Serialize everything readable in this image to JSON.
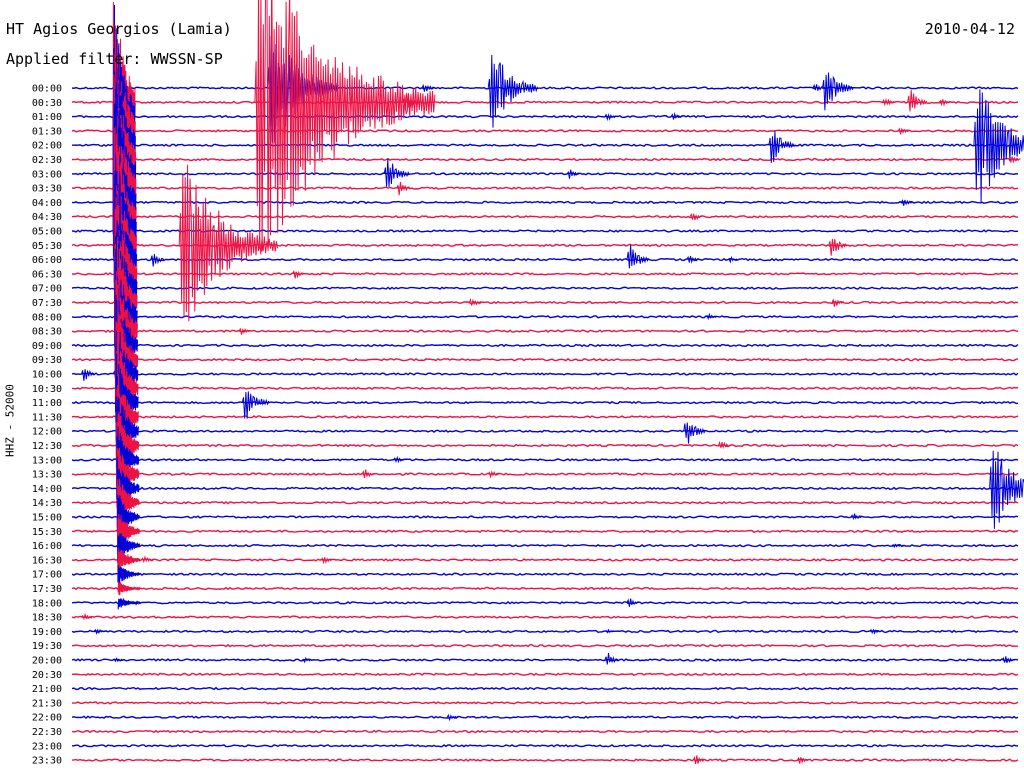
{
  "header": {
    "station_title": "HT Agios Georgios (Lamia)",
    "filter_label": "Applied filter: WWSSN-SP",
    "date": "2010-04-12"
  },
  "chart_data": {
    "type": "line",
    "title": "HT Agios Georgios (Lamia)",
    "ylabel": "HHZ - 52000",
    "colors": {
      "odd_trace": "#0000dd",
      "even_trace": "#ee1144"
    },
    "rows": [
      "00:00",
      "00:30",
      "01:00",
      "01:30",
      "02:00",
      "02:30",
      "03:00",
      "03:30",
      "04:00",
      "04:30",
      "05:00",
      "05:30",
      "06:00",
      "06:30",
      "07:00",
      "07:30",
      "08:00",
      "08:30",
      "09:00",
      "09:30",
      "10:00",
      "10:30",
      "11:00",
      "11:30",
      "12:00",
      "12:30",
      "13:00",
      "13:30",
      "14:00",
      "14:30",
      "15:00",
      "15:30",
      "16:00",
      "16:30",
      "17:00",
      "17:30",
      "18:00",
      "18:30",
      "19:00",
      "19:30",
      "20:00",
      "20:30",
      "21:00",
      "21:30",
      "22:00",
      "22:30",
      "23:00",
      "23:30"
    ],
    "events": [
      {
        "row": 0,
        "minute": 13.2,
        "amp": 55
      },
      {
        "row": 0,
        "minute": 6.2,
        "amp": 80
      },
      {
        "row": 0,
        "minute": 11.1,
        "amp": 12
      },
      {
        "row": 0,
        "minute": 23.5,
        "amp": 10
      },
      {
        "row": 0,
        "minute": 23.8,
        "amp": 35
      },
      {
        "row": 1,
        "minute": 5.8,
        "amp": 200
      },
      {
        "row": 1,
        "minute": 10.5,
        "amp": 18
      },
      {
        "row": 1,
        "minute": 26.5,
        "amp": 22
      },
      {
        "row": 1,
        "minute": 25.7,
        "amp": 10
      },
      {
        "row": 1,
        "minute": 27.5,
        "amp": 8
      },
      {
        "row": 2,
        "minute": 19.0,
        "amp": 8
      },
      {
        "row": 2,
        "minute": 16.9,
        "amp": 8
      },
      {
        "row": 3,
        "minute": 26.2,
        "amp": 8
      },
      {
        "row": 4,
        "minute": 22.1,
        "amp": 30
      },
      {
        "row": 4,
        "minute": 28.6,
        "amp": 80
      },
      {
        "row": 5,
        "minute": 29.7,
        "amp": 8
      },
      {
        "row": 6,
        "minute": 9.9,
        "amp": 28
      },
      {
        "row": 6,
        "minute": 15.7,
        "amp": 12
      },
      {
        "row": 7,
        "minute": 10.3,
        "amp": 15
      },
      {
        "row": 8,
        "minute": 26.3,
        "amp": 8
      },
      {
        "row": 9,
        "minute": 19.6,
        "amp": 12
      },
      {
        "row": 11,
        "minute": 3.4,
        "amp": 110
      },
      {
        "row": 11,
        "minute": 5.1,
        "amp": 8
      },
      {
        "row": 11,
        "minute": 24.0,
        "amp": 20
      },
      {
        "row": 12,
        "minute": 2.5,
        "amp": 15
      },
      {
        "row": 12,
        "minute": 17.6,
        "amp": 25
      },
      {
        "row": 12,
        "minute": 19.5,
        "amp": 10
      },
      {
        "row": 12,
        "minute": 20.8,
        "amp": 6
      },
      {
        "row": 13,
        "minute": 7.0,
        "amp": 10
      },
      {
        "row": 15,
        "minute": 12.6,
        "amp": 12
      },
      {
        "row": 15,
        "minute": 24.1,
        "amp": 10
      },
      {
        "row": 16,
        "minute": 20.1,
        "amp": 6
      },
      {
        "row": 17,
        "minute": 5.3,
        "amp": 8
      },
      {
        "row": 20,
        "minute": 0.3,
        "amp": 15
      },
      {
        "row": 20,
        "minute": 1.3,
        "amp": 12
      },
      {
        "row": 22,
        "minute": 5.4,
        "amp": 30
      },
      {
        "row": 24,
        "minute": 19.4,
        "amp": 25
      },
      {
        "row": 25,
        "minute": 20.5,
        "amp": 10
      },
      {
        "row": 26,
        "minute": 1.5,
        "amp": 15
      },
      {
        "row": 26,
        "minute": 10.2,
        "amp": 6
      },
      {
        "row": 27,
        "minute": 9.2,
        "amp": 12
      },
      {
        "row": 27,
        "minute": 13.2,
        "amp": 8
      },
      {
        "row": 28,
        "minute": 29.1,
        "amp": 60
      },
      {
        "row": 30,
        "minute": 24.7,
        "amp": 8
      },
      {
        "row": 32,
        "minute": 26.0,
        "amp": 4
      },
      {
        "row": 33,
        "minute": 2.2,
        "amp": 8
      },
      {
        "row": 33,
        "minute": 7.9,
        "amp": 8
      },
      {
        "row": 36,
        "minute": 17.6,
        "amp": 10
      },
      {
        "row": 37,
        "minute": 0.3,
        "amp": 8
      },
      {
        "row": 38,
        "minute": 0.7,
        "amp": 6
      },
      {
        "row": 38,
        "minute": 16.9,
        "amp": 5
      },
      {
        "row": 38,
        "minute": 25.3,
        "amp": 7
      },
      {
        "row": 40,
        "minute": 1.3,
        "amp": 5
      },
      {
        "row": 40,
        "minute": 7.3,
        "amp": 5
      },
      {
        "row": 40,
        "minute": 16.9,
        "amp": 15
      },
      {
        "row": 40,
        "minute": 29.5,
        "amp": 10
      },
      {
        "row": 44,
        "minute": 11.9,
        "amp": 8
      },
      {
        "row": 47,
        "minute": 19.7,
        "amp": 12
      },
      {
        "row": 47,
        "minute": 23.0,
        "amp": 8
      }
    ],
    "major_event": {
      "row": 1,
      "minute": 1.3,
      "duration_rows": 36
    }
  }
}
